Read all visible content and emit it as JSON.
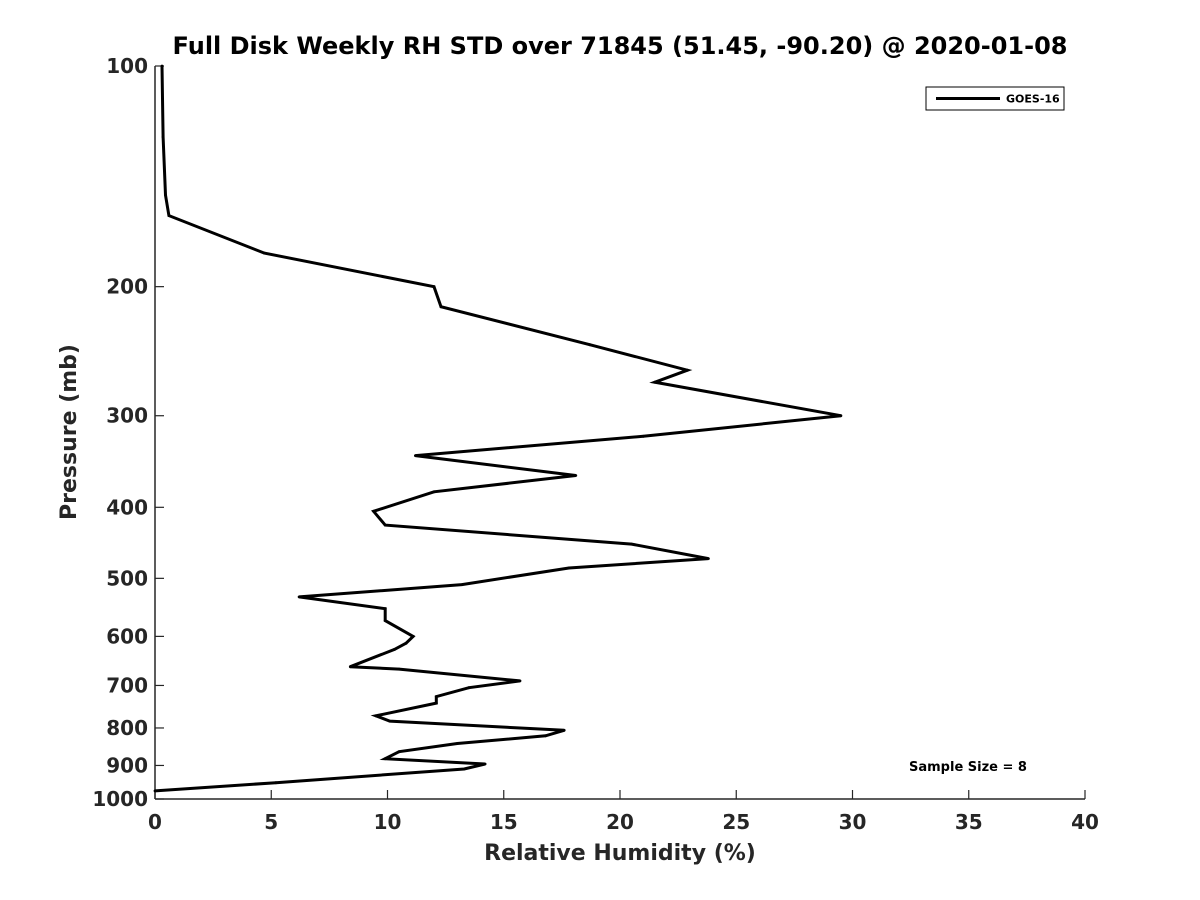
{
  "chart_data": {
    "type": "line",
    "title": "Full Disk Weekly RH STD over 71845 (51.45, -90.20) @ 2020-01-08",
    "xlabel": "Relative Humidity (%)",
    "ylabel": "Pressure (mb)",
    "xlim": [
      0,
      40
    ],
    "ylim": [
      100,
      1000
    ],
    "y_scale": "log",
    "y_reversed": true,
    "x_ticks": [
      0,
      5,
      10,
      15,
      20,
      25,
      30,
      35,
      40
    ],
    "y_ticks": [
      100,
      200,
      300,
      400,
      500,
      600,
      700,
      800,
      900,
      1000
    ],
    "grid": false,
    "legend_position": "top-right",
    "annotation": "Sample Size = 8",
    "series": [
      {
        "name": "GOES-16",
        "color": "#000000",
        "points": [
          [
            0.3,
            100
          ],
          [
            0.35,
            125
          ],
          [
            0.45,
            150
          ],
          [
            0.6,
            160
          ],
          [
            4.7,
            180
          ],
          [
            12.0,
            200
          ],
          [
            12.3,
            213
          ],
          [
            18.7,
            240
          ],
          [
            22.9,
            260
          ],
          [
            21.5,
            270
          ],
          [
            29.5,
            300
          ],
          [
            21.0,
            320
          ],
          [
            11.2,
            340
          ],
          [
            18.1,
            362
          ],
          [
            12.0,
            381
          ],
          [
            9.4,
            405
          ],
          [
            9.9,
            423
          ],
          [
            20.5,
            449
          ],
          [
            23.8,
            470
          ],
          [
            17.8,
            484
          ],
          [
            13.2,
            510
          ],
          [
            6.2,
            530
          ],
          [
            9.9,
            550
          ],
          [
            9.9,
            571
          ],
          [
            11.1,
            600
          ],
          [
            10.8,
            613
          ],
          [
            10.3,
            625
          ],
          [
            8.4,
            660
          ],
          [
            10.5,
            665
          ],
          [
            15.7,
            690
          ],
          [
            13.5,
            705
          ],
          [
            12.1,
            725
          ],
          [
            12.1,
            740
          ],
          [
            9.5,
            770
          ],
          [
            10.1,
            783
          ],
          [
            17.6,
            806
          ],
          [
            16.8,
            820
          ],
          [
            13.0,
            840
          ],
          [
            10.5,
            862
          ],
          [
            9.9,
            881
          ],
          [
            14.2,
            896
          ],
          [
            13.3,
            910
          ],
          [
            5.2,
            950
          ],
          [
            0.0,
            975
          ]
        ]
      }
    ]
  }
}
